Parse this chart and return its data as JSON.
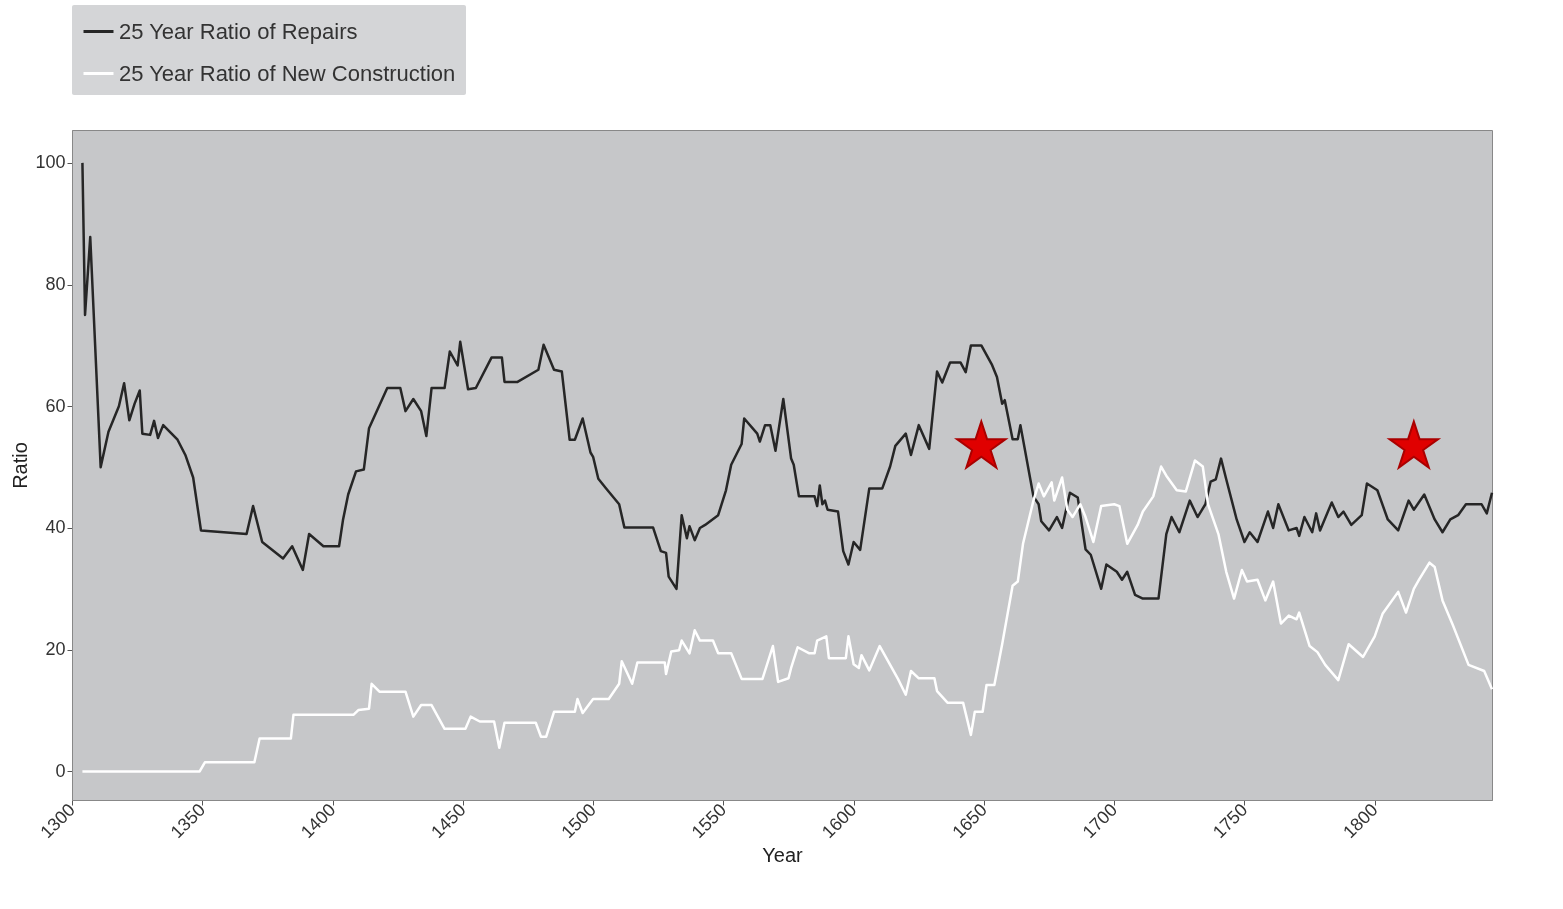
{
  "chart_data": {
    "type": "line",
    "xlabel": "Year",
    "ylabel": "Ratio",
    "xlim": [
      1300,
      1845
    ],
    "ylim": [
      -4.7,
      105.4
    ],
    "xticks": [
      1300,
      1350,
      1400,
      1450,
      1500,
      1550,
      1600,
      1650,
      1700,
      1750,
      1800
    ],
    "yticks": [
      0,
      20,
      40,
      60,
      80,
      100
    ],
    "grid": false,
    "legend": "top left",
    "line_style": "solid",
    "marker": "none",
    "series": [
      {
        "name": "25 Year Ratio of Repairs",
        "color": "#262626",
        "x": [
          1304,
          1305,
          1307,
          1311,
          1314,
          1318,
          1320,
          1322,
          1324,
          1326,
          1327,
          1330,
          1331.5,
          1333,
          1335,
          1340.5,
          1343.5,
          1346.5,
          1349.5,
          1367,
          1369.5,
          1373,
          1381,
          1384.5,
          1388.6,
          1391,
          1396.5,
          1402.5,
          1404,
          1406,
          1409,
          1412,
          1414,
          1421,
          1426,
          1428,
          1431,
          1434,
          1436,
          1438,
          1443,
          1445,
          1448,
          1449,
          1452,
          1455,
          1461,
          1465,
          1466,
          1471,
          1479,
          1481,
          1485,
          1488,
          1491,
          1493,
          1496,
          1499,
          1500,
          1502,
          1505,
          1510,
          1512,
          1523,
          1526,
          1528,
          1529,
          1532,
          1534,
          1536,
          1537,
          1539,
          1541,
          1543,
          1548,
          1551,
          1553,
          1557,
          1558,
          1563,
          1564,
          1566,
          1568,
          1570,
          1573,
          1576,
          1577,
          1579,
          1585,
          1586,
          1587,
          1588,
          1589,
          1590,
          1594,
          1596,
          1598,
          1600,
          1602.5,
          1606,
          1611,
          1614,
          1616,
          1620,
          1622,
          1625,
          1629,
          1632,
          1634,
          1637,
          1641,
          1643,
          1645,
          1649,
          1653,
          1655,
          1657,
          1658,
          1661,
          1663,
          1664,
          1669,
          1671,
          1672,
          1675,
          1678,
          1680,
          1683,
          1686,
          1689,
          1691,
          1695,
          1697,
          1701,
          1703,
          1705,
          1708,
          1711,
          1717,
          1720,
          1722,
          1725,
          1729,
          1732,
          1735,
          1737,
          1739,
          1741,
          1743,
          1747,
          1750,
          1752,
          1755,
          1759,
          1761,
          1763,
          1767,
          1770,
          1771,
          1773,
          1776,
          1777.5,
          1779,
          1783.5,
          1786,
          1788,
          1791,
          1795,
          1797,
          1801,
          1805,
          1809,
          1813,
          1815,
          1819,
          1823,
          1826,
          1829,
          1832,
          1835,
          1841,
          1843,
          1845
        ],
        "values": [
          100,
          75,
          87.8,
          50,
          55.8,
          60,
          63.8,
          57.7,
          60.4,
          62.6,
          55.5,
          55.3,
          57.6,
          54.8,
          56.9,
          54.5,
          52,
          48.3,
          39.6,
          39,
          43.6,
          37.7,
          35,
          37,
          33.1,
          39,
          37,
          37,
          41.3,
          45.5,
          49.3,
          49.6,
          56.4,
          63,
          63,
          59.2,
          61.2,
          59.2,
          55.1,
          63,
          63,
          69,
          66.7,
          70.6,
          62.8,
          63,
          68,
          68,
          64,
          64,
          66,
          70.1,
          66,
          65.7,
          54.5,
          54.5,
          58,
          52.4,
          51.7,
          48.1,
          46.5,
          43.9,
          40.1,
          40.1,
          36.2,
          35.9,
          32,
          30,
          42.1,
          38.3,
          40.3,
          38,
          40,
          40.5,
          42.1,
          46.2,
          50.4,
          53.8,
          58,
          55.5,
          54.2,
          56.9,
          56.9,
          52.7,
          61.2,
          51.4,
          50.4,
          45.2,
          45.2,
          43.6,
          47,
          43.9,
          44.5,
          43,
          42.7,
          36.2,
          34,
          37.7,
          36.4,
          46.5,
          46.5,
          50.1,
          53.5,
          55.5,
          52,
          56.9,
          53,
          65.7,
          63.9,
          67.2,
          67.2,
          65.6,
          70,
          70,
          66.9,
          64.8,
          60.4,
          61,
          54.6,
          54.6,
          56.9,
          45.2,
          43.9,
          41.1,
          39.6,
          41.8,
          40,
          45.8,
          45,
          36.5,
          35.6,
          30,
          34,
          32.8,
          31.5,
          32.8,
          29,
          28.4,
          28.4,
          39,
          41.8,
          39.3,
          44.5,
          41.8,
          43.9,
          47.6,
          48,
          51.4,
          48,
          41.4,
          37.7,
          39.3,
          37.7,
          42.7,
          40,
          43.9,
          39.6,
          40,
          38.7,
          41.8,
          39.3,
          42.4,
          39.6,
          44.2,
          41.8,
          42.7,
          40.5,
          42.1,
          47.3,
          46.2,
          41.4,
          39.6,
          44.5,
          43,
          45.5,
          41.4,
          39.3,
          41.4,
          42.1,
          43.9,
          43.9,
          42.4,
          45.8
        ]
      },
      {
        "name": "25 Year Ratio of New Construction",
        "color": "#ffffff",
        "x": [
          1304,
          1349,
          1351,
          1370,
          1372,
          1384,
          1385,
          1395,
          1408,
          1410,
          1414,
          1415,
          1418,
          1428,
          1431,
          1434,
          1438,
          1443,
          1451,
          1453,
          1456.5,
          1462,
          1464,
          1466,
          1478,
          1480,
          1482,
          1485,
          1489,
          1493,
          1494,
          1496,
          1500,
          1506,
          1510,
          1511,
          1515,
          1517,
          1527.5,
          1528,
          1530,
          1533,
          1534,
          1537,
          1539,
          1541,
          1546,
          1548,
          1553,
          1557,
          1565,
          1569,
          1571,
          1575,
          1576,
          1578.5,
          1583,
          1585,
          1586,
          1589.5,
          1590.5,
          1597,
          1598,
          1600,
          1602,
          1603,
          1606,
          1610,
          1617,
          1620,
          1622,
          1625,
          1631,
          1632,
          1636,
          1642,
          1645,
          1646.5,
          1649.5,
          1651,
          1654,
          1657,
          1661,
          1663,
          1665,
          1669,
          1671,
          1673,
          1676,
          1677,
          1680,
          1682,
          1684,
          1687,
          1689,
          1692,
          1695,
          1700,
          1702,
          1705,
          1709,
          1711,
          1715,
          1718,
          1720,
          1724,
          1727.5,
          1731,
          1734,
          1736,
          1740,
          1743,
          1746,
          1749,
          1751,
          1755,
          1758,
          1761,
          1764,
          1767,
          1770,
          1771,
          1775,
          1778,
          1781,
          1786,
          1790,
          1795.5,
          1800,
          1803,
          1809,
          1812,
          1815,
          1817,
          1821,
          1823,
          1826,
          1830,
          1836,
          1842,
          1845
        ],
        "values": [
          0,
          0,
          1.5,
          1.5,
          5.4,
          5.4,
          9.3,
          9.3,
          9.3,
          10.1,
          10.3,
          14.4,
          13.1,
          13.1,
          9,
          10.9,
          10.9,
          7,
          7,
          9,
          8.2,
          8.2,
          3.9,
          8,
          8,
          5.7,
          5.7,
          9.8,
          9.8,
          9.8,
          11.9,
          9.6,
          11.9,
          11.9,
          14.4,
          18.1,
          14.4,
          17.9,
          17.9,
          16,
          19.7,
          19.9,
          21.5,
          19.4,
          23.2,
          21.5,
          21.5,
          19.4,
          19.4,
          15.2,
          15.2,
          20.6,
          14.7,
          15.3,
          17,
          20.4,
          19.4,
          19.4,
          21.5,
          22.2,
          18.6,
          18.6,
          22.2,
          17.6,
          17,
          19.1,
          16.6,
          20.6,
          15.2,
          12.6,
          16.5,
          15.3,
          15.3,
          13.2,
          11.3,
          11.3,
          6,
          9.8,
          9.8,
          14.2,
          14.2,
          20.9,
          30.5,
          31.2,
          37.4,
          44.5,
          47.3,
          45.2,
          47.5,
          44.5,
          48.3,
          43,
          41.8,
          43.9,
          41.8,
          37.7,
          43.6,
          43.9,
          43.6,
          37.4,
          40.5,
          42.7,
          45.2,
          50.1,
          48.6,
          46.2,
          46,
          51.1,
          50.1,
          43.9,
          39,
          32.8,
          28.4,
          33.1,
          31.2,
          31.5,
          28.1,
          31.2,
          24.3,
          25.6,
          25,
          26.1,
          20.6,
          19.6,
          17.5,
          15,
          20.9,
          18.8,
          22.2,
          25.9,
          29.5,
          26.1,
          30,
          31.5,
          34.3,
          33.6,
          28.1,
          24,
          17.5,
          16.5,
          13.5
        ]
      },
      {
        "type": "scatter",
        "marker": "star",
        "color": "#e00000",
        "x": [
          1649,
          1815
        ],
        "values": [
          53.3,
          53.3
        ]
      }
    ]
  }
}
